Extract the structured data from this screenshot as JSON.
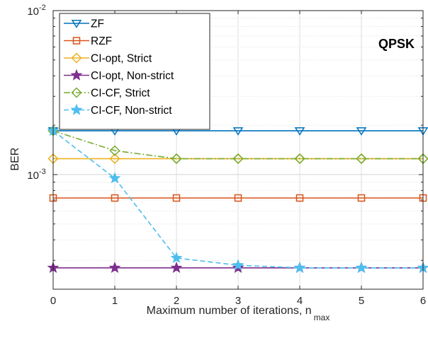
{
  "chart_data": {
    "type": "line",
    "title": "",
    "annotation": "QPSK",
    "xlabel": "Maximum number of iterations, n",
    "xlabel_subscript": "max",
    "ylabel": "BER",
    "y_scale": "log",
    "xlim": [
      0,
      6
    ],
    "ylim": [
      0.0002,
      0.01
    ],
    "grid": true,
    "legend_position": "top-left",
    "x": [
      0,
      1,
      2,
      3,
      4,
      5,
      6
    ],
    "x_ticks": [
      "0",
      "1",
      "2",
      "3",
      "4",
      "5",
      "6"
    ],
    "y_ticks": [
      {
        "value": 0.01,
        "base": "10",
        "exp": "-2"
      },
      {
        "value": 0.001,
        "base": "10",
        "exp": "-3"
      }
    ],
    "series": [
      {
        "name": "ZF",
        "color": "#0072BD",
        "marker": "triangle-down",
        "dash": "solid",
        "values": [
          0.00185,
          0.00185,
          0.00185,
          0.00185,
          0.00185,
          0.00185,
          0.00185
        ]
      },
      {
        "name": "RZF",
        "color": "#D95319",
        "marker": "square",
        "dash": "solid",
        "values": [
          0.00072,
          0.00072,
          0.00072,
          0.00072,
          0.00072,
          0.00072,
          0.00072
        ]
      },
      {
        "name": "CI-opt, Strict",
        "color": "#EDB120",
        "marker": "diamond",
        "dash": "solid",
        "values": [
          0.00125,
          0.00125,
          0.00125,
          0.00125,
          0.00125,
          0.00125,
          0.00125
        ]
      },
      {
        "name": "CI-opt, Non-strict",
        "color": "#7E2F8E",
        "marker": "star",
        "dash": "solid",
        "values": [
          0.00027,
          0.00027,
          0.00027,
          0.00027,
          0.00027,
          0.00027,
          0.00027
        ]
      },
      {
        "name": "CI-CF, Strict",
        "color": "#77AC30",
        "marker": "diamond",
        "dash": "dashdot",
        "values": [
          0.00185,
          0.0014,
          0.00125,
          0.00125,
          0.00125,
          0.00125,
          0.00125
        ]
      },
      {
        "name": "CI-CF, Non-strict",
        "color": "#4DBEEE",
        "marker": "star",
        "dash": "dashed",
        "values": [
          0.00185,
          0.00095,
          0.00031,
          0.00028,
          0.00027,
          0.00027,
          0.00027
        ]
      }
    ]
  }
}
